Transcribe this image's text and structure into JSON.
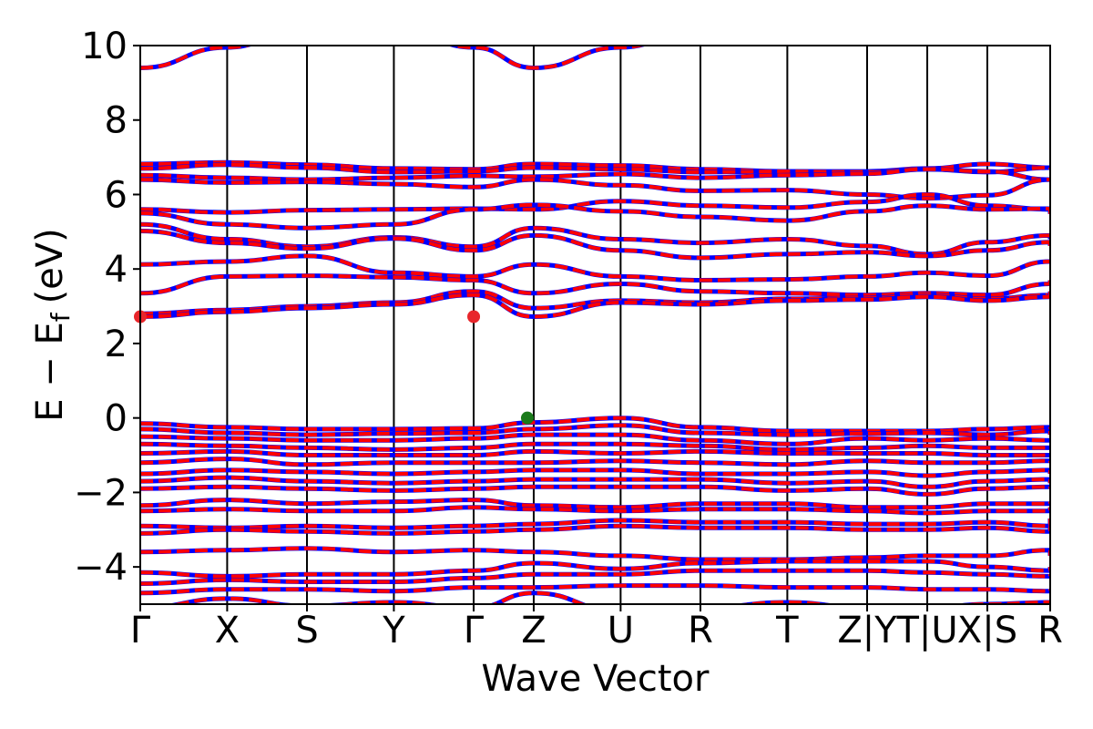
{
  "chart_data": {
    "type": "line",
    "title": "",
    "xlabel": "Wave Vector",
    "ylabel": "E − E",
    "ylabel_subscript": "f",
    "ylabel_unit": "(eV)",
    "ylim": [
      -5,
      10
    ],
    "yticks": [
      -4,
      -2,
      0,
      2,
      4,
      6,
      8,
      10
    ],
    "ytick_labels": [
      "−4",
      "−2",
      "0",
      "2",
      "4",
      "6",
      "8",
      "10"
    ],
    "x_high_symmetry_points": [
      {
        "label": "Γ",
        "x": 0.0
      },
      {
        "label": "X",
        "x": 0.0955
      },
      {
        "label": "S",
        "x": 0.1832
      },
      {
        "label": "Y",
        "x": 0.2787
      },
      {
        "label": "Γ",
        "x": 0.3664
      },
      {
        "label": "Z",
        "x": 0.4324
      },
      {
        "label": "U",
        "x": 0.5279
      },
      {
        "label": "R",
        "x": 0.6156
      },
      {
        "label": "T",
        "x": 0.7111
      },
      {
        "label": "Z|Y",
        "x": 0.7988
      },
      {
        "label": "T|U",
        "x": 0.8649
      },
      {
        "label": "X|S",
        "x": 0.9309
      },
      {
        "label": "R",
        "x": 1.0
      }
    ],
    "markers": [
      {
        "name": "CBM",
        "x": 0.0,
        "y": 2.72,
        "color": "#e8262b"
      },
      {
        "name": "CBM",
        "x": 0.3664,
        "y": 2.72,
        "color": "#e8262b"
      },
      {
        "name": "VBM",
        "x": 0.4254,
        "y": 0.0,
        "color": "#1a7a1a"
      }
    ],
    "series_colors": {
      "spin_up": "#ff0000",
      "spin_down": "#0000ff"
    },
    "conduction_bands": [
      [
        6.82,
        6.86,
        6.8,
        6.7,
        6.68,
        6.82,
        6.78,
        6.68,
        6.62,
        6.62,
        6.7,
        6.82,
        6.72,
        6.68
      ],
      [
        6.7,
        6.8,
        6.72,
        6.6,
        6.62,
        6.72,
        6.68,
        6.6,
        6.62,
        6.6,
        6.68,
        6.6,
        6.72,
        6.68
      ],
      [
        6.52,
        6.45,
        6.4,
        6.45,
        6.5,
        6.48,
        6.55,
        6.45,
        6.52,
        6.56,
        6.68,
        6.62,
        6.4,
        6.4
      ],
      [
        6.4,
        6.32,
        6.34,
        6.28,
        6.2,
        6.4,
        6.25,
        6.1,
        6.12,
        6.0,
        5.9,
        5.98,
        6.4,
        6.42
      ],
      [
        5.6,
        5.52,
        5.58,
        5.6,
        5.62,
        5.6,
        5.82,
        5.7,
        5.65,
        5.8,
        6.0,
        5.7,
        5.6,
        5.5
      ],
      [
        5.5,
        5.2,
        5.1,
        5.2,
        5.6,
        5.72,
        5.55,
        5.4,
        5.3,
        5.55,
        5.7,
        5.6,
        5.62,
        5.48
      ],
      [
        5.2,
        4.8,
        4.6,
        4.85,
        4.6,
        5.1,
        4.8,
        4.7,
        4.8,
        4.62,
        4.4,
        4.72,
        4.9,
        4.8
      ],
      [
        5.02,
        4.7,
        4.55,
        4.82,
        4.5,
        4.9,
        4.5,
        4.3,
        4.4,
        4.45,
        4.35,
        4.5,
        4.72,
        4.62
      ],
      [
        4.12,
        4.2,
        4.35,
        3.9,
        3.8,
        4.12,
        3.8,
        3.7,
        3.72,
        3.8,
        3.9,
        3.82,
        4.2,
        4.2
      ],
      [
        3.35,
        3.8,
        3.82,
        3.78,
        3.7,
        3.35,
        3.6,
        3.4,
        3.35,
        3.3,
        3.35,
        3.3,
        3.6,
        3.7
      ],
      [
        2.8,
        2.9,
        3.0,
        3.1,
        3.4,
        2.95,
        3.15,
        3.1,
        3.2,
        3.22,
        3.3,
        3.2,
        3.3,
        3.4
      ],
      [
        2.72,
        2.85,
        2.95,
        3.05,
        3.3,
        2.72,
        3.1,
        3.05,
        3.15,
        3.18,
        3.25,
        3.15,
        3.25,
        3.35
      ],
      [
        9.4,
        9.95,
        10.5,
        10.5,
        9.95,
        9.4,
        9.95,
        10.5,
        10.5,
        10.5,
        10.5,
        10.5,
        10.5,
        10.5
      ]
    ],
    "valence_bands": [
      [
        -0.15,
        -0.25,
        -0.3,
        -0.3,
        -0.28,
        -0.12,
        0.0,
        -0.25,
        -0.35,
        -0.35,
        -0.35,
        -0.3,
        -0.25,
        -0.35
      ],
      [
        -0.3,
        -0.4,
        -0.45,
        -0.42,
        -0.4,
        -0.3,
        -0.2,
        -0.4,
        -0.45,
        -0.42,
        -0.4,
        -0.45,
        -0.35,
        -0.45
      ],
      [
        -0.5,
        -0.55,
        -0.6,
        -0.6,
        -0.55,
        -0.45,
        -0.45,
        -0.6,
        -0.7,
        -0.55,
        -0.6,
        -0.55,
        -0.6,
        -0.6
      ],
      [
        -0.7,
        -0.75,
        -0.8,
        -0.85,
        -0.8,
        -0.7,
        -0.7,
        -0.75,
        -0.85,
        -0.8,
        -0.75,
        -0.8,
        -0.8,
        -0.8
      ],
      [
        -0.95,
        -0.9,
        -1.0,
        -1.0,
        -1.0,
        -0.9,
        -0.95,
        -0.9,
        -0.95,
        -0.95,
        -0.95,
        -1.0,
        -1.0,
        -1.0
      ],
      [
        -1.2,
        -1.1,
        -1.25,
        -1.2,
        -1.2,
        -1.2,
        -1.15,
        -1.2,
        -1.25,
        -1.15,
        -1.2,
        -1.2,
        -1.15,
        -1.2
      ],
      [
        -1.5,
        -1.4,
        -1.45,
        -1.5,
        -1.45,
        -1.4,
        -1.4,
        -1.5,
        -1.5,
        -1.45,
        -1.55,
        -1.45,
        -1.4,
        -1.5
      ],
      [
        -1.7,
        -1.6,
        -1.7,
        -1.75,
        -1.7,
        -1.65,
        -1.65,
        -1.65,
        -1.75,
        -1.7,
        -1.85,
        -1.7,
        -1.65,
        -1.75
      ],
      [
        -1.9,
        -1.85,
        -1.9,
        -1.95,
        -1.9,
        -1.85,
        -1.85,
        -1.85,
        -1.95,
        -1.9,
        -2.05,
        -1.9,
        -1.85,
        -1.9
      ],
      [
        -2.35,
        -2.2,
        -2.3,
        -2.25,
        -2.2,
        -2.35,
        -2.4,
        -2.3,
        -2.3,
        -2.4,
        -2.4,
        -2.3,
        -2.3,
        -2.25
      ],
      [
        -2.5,
        -2.45,
        -2.5,
        -2.5,
        -2.4,
        -2.45,
        -2.5,
        -2.45,
        -2.45,
        -2.5,
        -2.55,
        -2.5,
        -2.5,
        -2.4
      ],
      [
        -2.9,
        -2.95,
        -2.9,
        -2.95,
        -2.9,
        -2.85,
        -2.75,
        -2.8,
        -2.8,
        -2.85,
        -2.85,
        -2.8,
        -2.9,
        -2.7
      ],
      [
        -3.1,
        -3.0,
        -3.05,
        -3.1,
        -3.05,
        -3.0,
        -2.9,
        -2.95,
        -2.95,
        -3.0,
        -3.0,
        -2.95,
        -3.05,
        -2.9
      ],
      [
        -3.6,
        -3.55,
        -3.5,
        -3.6,
        -3.55,
        -3.6,
        -3.7,
        -3.8,
        -3.8,
        -3.75,
        -3.7,
        -3.7,
        -3.55,
        -3.7
      ],
      [
        -4.15,
        -4.25,
        -4.2,
        -4.2,
        -4.1,
        -3.9,
        -4.05,
        -3.9,
        -3.85,
        -3.85,
        -3.85,
        -4.0,
        -4.1,
        -4.0
      ],
      [
        -4.45,
        -4.35,
        -4.4,
        -4.4,
        -4.3,
        -4.2,
        -4.2,
        -4.1,
        -4.1,
        -4.1,
        -4.15,
        -4.2,
        -4.25,
        -4.2
      ],
      [
        -4.7,
        -4.6,
        -4.6,
        -4.65,
        -4.55,
        -4.55,
        -4.5,
        -4.5,
        -4.55,
        -4.55,
        -4.6,
        -4.6,
        -4.65,
        -4.6
      ],
      [
        -5.1,
        -4.85,
        -5.05,
        -4.95,
        -5.1,
        -4.7,
        -5.2,
        -5.1,
        -4.95,
        -5.1,
        -5.1,
        -5.0,
        -4.95,
        -4.9
      ]
    ]
  }
}
